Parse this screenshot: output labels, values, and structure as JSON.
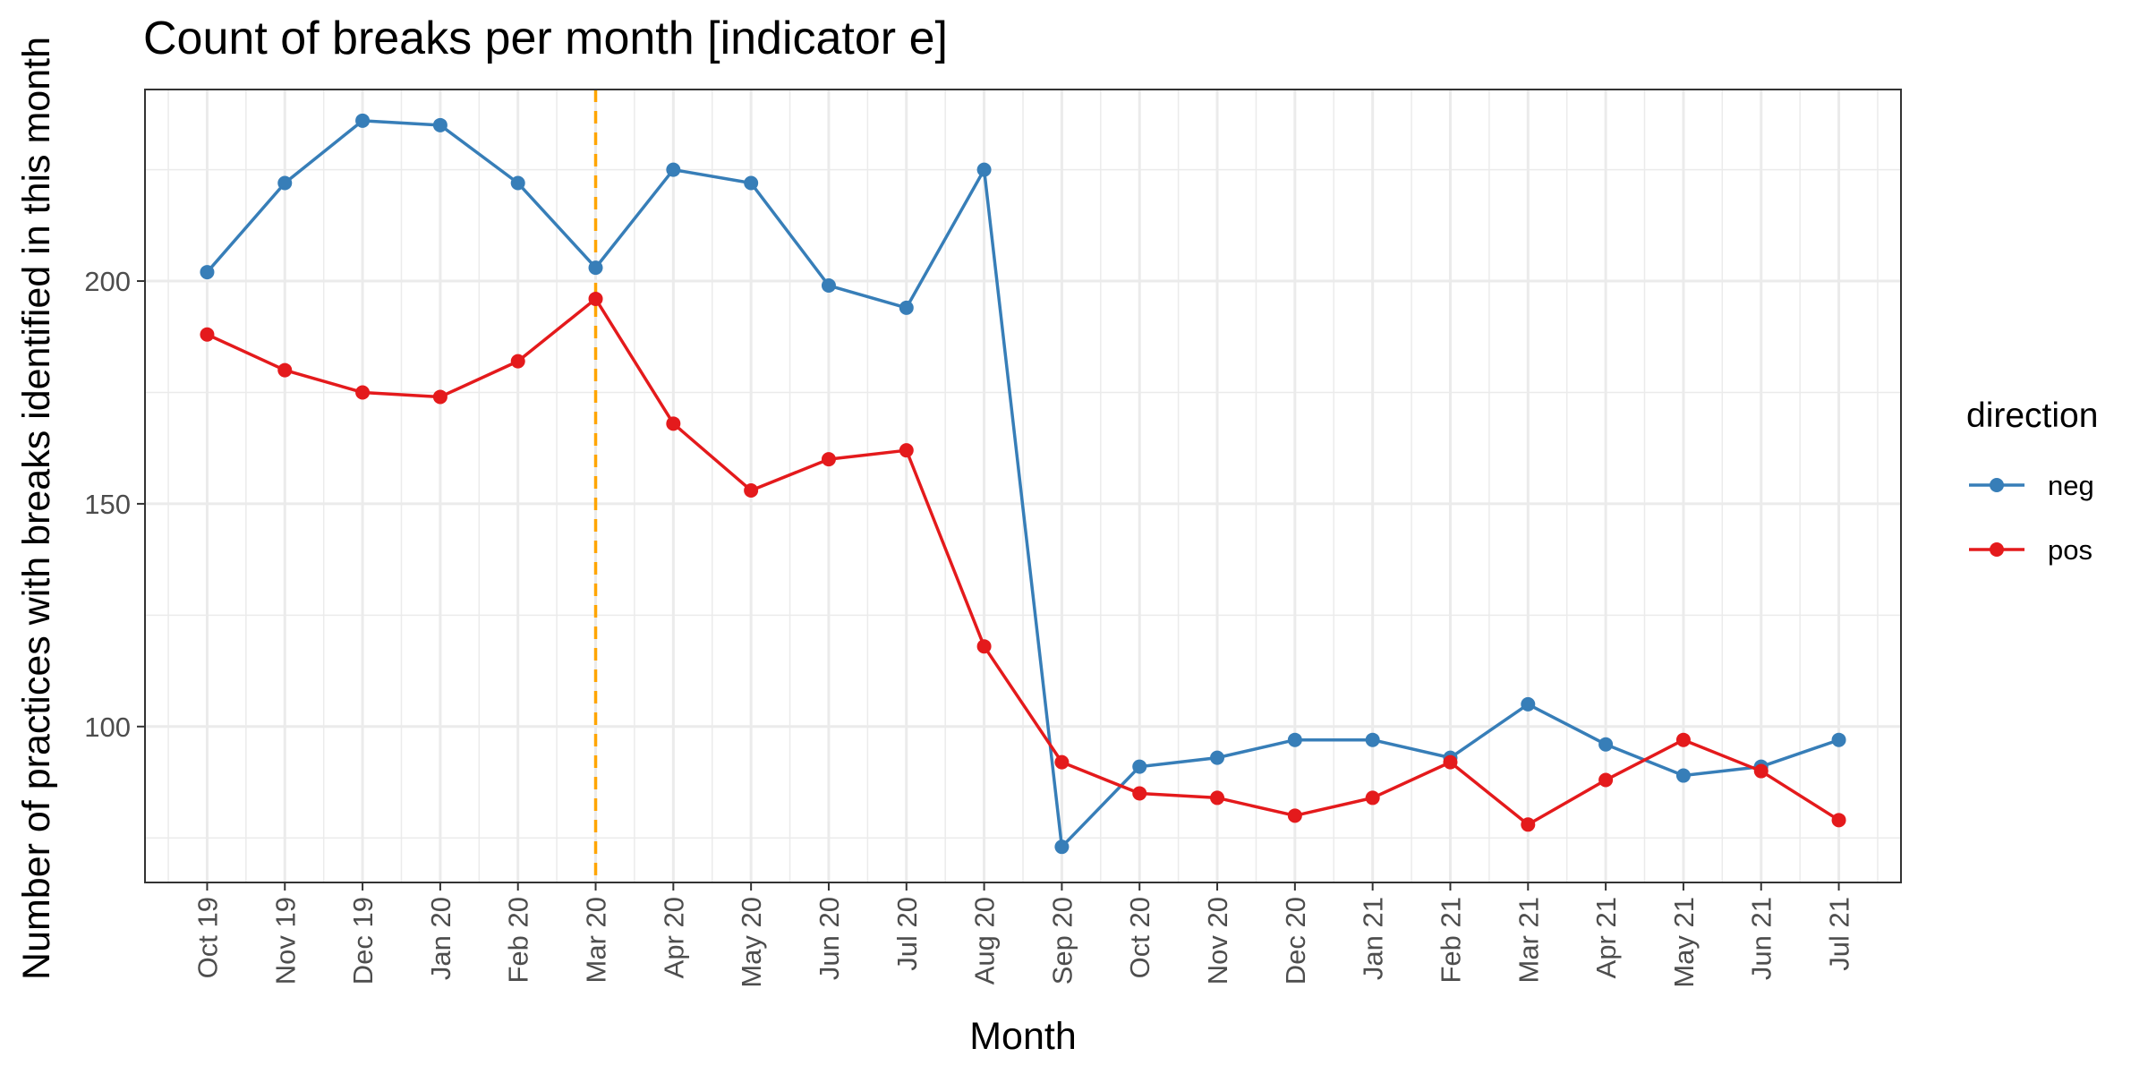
{
  "chart_data": {
    "type": "line",
    "title": "Count of breaks per month [indicator e]",
    "xlabel": "Month",
    "ylabel": "Number of practices with breaks identified in this month",
    "categories": [
      "Oct 19",
      "Nov 19",
      "Dec 19",
      "Jan 20",
      "Feb 20",
      "Mar 20",
      "Apr 20",
      "May 20",
      "Jun 20",
      "Jul 20",
      "Aug 20",
      "Sep 20",
      "Oct 20",
      "Nov 20",
      "Dec 20",
      "Jan 21",
      "Feb 21",
      "Mar 21",
      "Apr 21",
      "May 21",
      "Jun 21",
      "Jul 21"
    ],
    "ylim": [
      65,
      243
    ],
    "yticks": [
      100,
      150,
      200
    ],
    "grid": true,
    "legend": {
      "title": "direction",
      "position": "right"
    },
    "reference_line": {
      "category": "Mar 20",
      "color": "#FFA500",
      "style": "dashed"
    },
    "series": [
      {
        "name": "neg",
        "color": "#377EB8",
        "values": [
          202,
          222,
          236,
          235,
          222,
          203,
          225,
          222,
          199,
          194,
          225,
          73,
          91,
          93,
          97,
          97,
          93,
          105,
          96,
          89,
          91,
          97
        ]
      },
      {
        "name": "pos",
        "color": "#E41A1C",
        "values": [
          188,
          180,
          175,
          174,
          182,
          196,
          168,
          153,
          160,
          162,
          118,
          92,
          85,
          84,
          80,
          84,
          92,
          78,
          88,
          97,
          90,
          79
        ]
      }
    ]
  }
}
